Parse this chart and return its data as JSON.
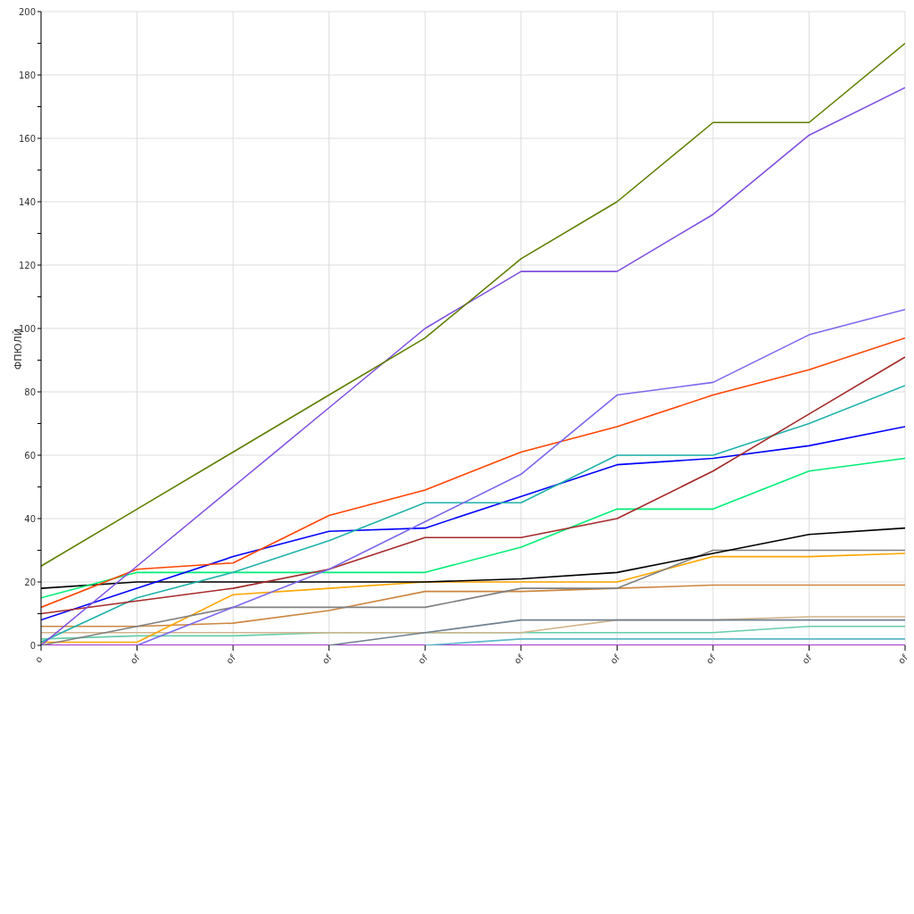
{
  "chart_data": {
    "type": "line",
    "ylabel": "ФПЮЛЙ",
    "categories": [
      "o",
      "of",
      "of",
      "of",
      "of",
      "of",
      "of",
      "of",
      "of",
      "of"
    ],
    "ylim": [
      0,
      200
    ],
    "yticks": [
      0,
      {
        "value": 10,
        "label": null
      },
      20,
      {
        "value": 30,
        "label": null
      },
      40,
      {
        "value": 50,
        "label": null
      },
      60,
      {
        "value": 70,
        "label": null
      },
      80,
      {
        "value": 90,
        "label": null
      },
      100,
      {
        "value": 110,
        "label": null
      },
      120,
      {
        "value": 130,
        "label": null
      },
      140,
      {
        "value": 150,
        "label": null
      },
      160,
      {
        "value": 170,
        "label": null
      },
      180,
      {
        "value": 190,
        "label": null
      },
      200
    ],
    "grid": true,
    "legend": false,
    "marker": "none",
    "line_style": "solid",
    "series": [
      {
        "color": "#9400d3",
        "values": [
          0,
          0,
          0,
          0,
          0,
          0,
          0,
          0,
          0,
          0
        ]
      },
      {
        "color": "#5fb8c8",
        "values": [
          null,
          null,
          null,
          null,
          0,
          2,
          2,
          2,
          2,
          2
        ]
      },
      {
        "color": "#66cdaa",
        "values": [
          2,
          3,
          3,
          4,
          4,
          4,
          4,
          4,
          6,
          6
        ]
      },
      {
        "color": "#d2b48c",
        "values": [
          4,
          4,
          4,
          4,
          4,
          4,
          8,
          8,
          9,
          9
        ]
      },
      {
        "color": "#708090",
        "values": [
          null,
          null,
          null,
          0,
          4,
          8,
          8,
          8,
          8,
          8
        ]
      },
      {
        "color": "#cd853f",
        "values": [
          6,
          6,
          7,
          11,
          17,
          17,
          18,
          19,
          19,
          19
        ]
      },
      {
        "color": "#ffa500",
        "values": [
          1,
          1,
          16,
          18,
          20,
          20,
          20,
          28,
          28,
          29
        ]
      },
      {
        "color": "#808080",
        "values": [
          0,
          6,
          12,
          12,
          12,
          18,
          18,
          30,
          30,
          30
        ]
      },
      {
        "color": "#000000",
        "values": [
          18,
          20,
          20,
          20,
          20,
          21,
          23,
          29,
          35,
          37
        ]
      },
      {
        "color": "#00ee76",
        "values": [
          15,
          23,
          23,
          23,
          23,
          31,
          43,
          43,
          55,
          59
        ]
      },
      {
        "color": "#0000ff",
        "values": [
          8,
          18,
          28,
          36,
          37,
          47,
          57,
          59,
          63,
          69
        ]
      },
      {
        "color": "#20b2aa",
        "values": [
          1,
          15,
          23,
          33,
          45,
          45,
          60,
          60,
          70,
          82
        ]
      },
      {
        "color": "#a52a2a",
        "values": [
          10,
          14,
          18,
          24,
          34,
          34,
          40,
          55,
          73,
          91
        ]
      },
      {
        "color": "#ff4500",
        "values": [
          12,
          24,
          26,
          41,
          49,
          61,
          69,
          79,
          87,
          97
        ]
      },
      {
        "color": "#7b68ee",
        "values": [
          null,
          0,
          12,
          24,
          39,
          54,
          79,
          83,
          98,
          106
        ]
      },
      {
        "color": "#8050e0",
        "values": [
          0,
          25,
          50,
          75,
          100,
          118,
          118,
          136,
          161,
          176
        ]
      },
      {
        "color": "#5f7f00",
        "values": [
          25,
          43,
          61,
          79,
          97,
          122,
          140,
          165,
          165,
          190
        ]
      }
    ]
  }
}
